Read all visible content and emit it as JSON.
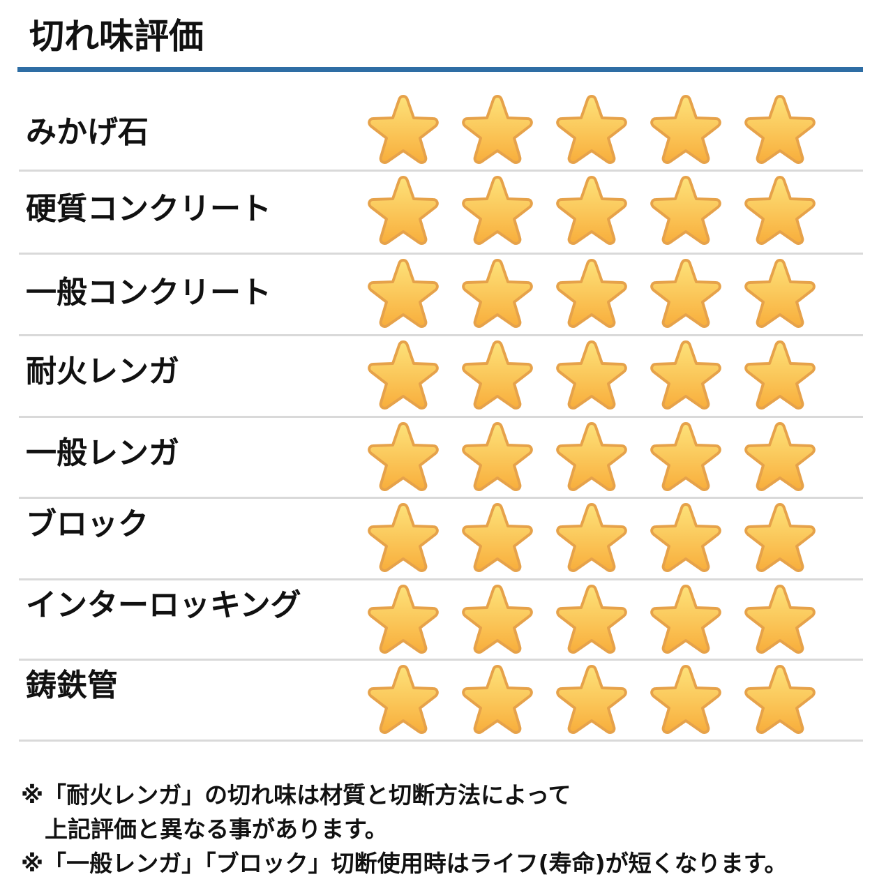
{
  "title": "切れ味評価",
  "accent_color": "#2e6da4",
  "star_color": "#fbbf45",
  "max_rating": 5,
  "rows": [
    {
      "label": "みかげ石",
      "rating": 5
    },
    {
      "label": "硬質コンクリート",
      "rating": 5
    },
    {
      "label": "一般コンクリート",
      "rating": 5
    },
    {
      "label": "耐火レンガ",
      "rating": 5
    },
    {
      "label": "一般レンガ",
      "rating": 5
    },
    {
      "label": "ブロック",
      "rating": 5
    },
    {
      "label": "インターロッキング",
      "rating": 5
    },
    {
      "label": "鋳鉄管",
      "rating": 5
    }
  ],
  "notes": [
    "※「耐火レンガ」の切れ味は材質と切断方法によって",
    "上記評価と異なる事があります。",
    "※「一般レンガ」「ブロック」切断使用時はライフ(寿命)が短くなります。"
  ]
}
